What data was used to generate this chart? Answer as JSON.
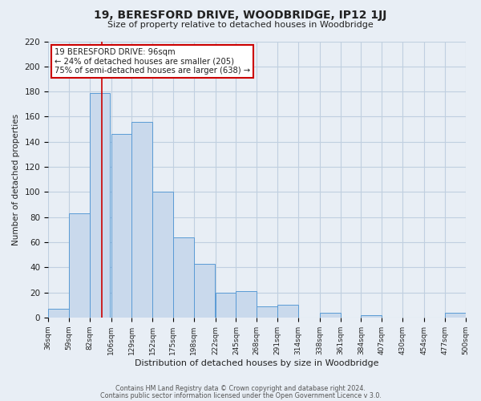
{
  "title": "19, BERESFORD DRIVE, WOODBRIDGE, IP12 1JJ",
  "subtitle": "Size of property relative to detached houses in Woodbridge",
  "xlabel": "Distribution of detached houses by size in Woodbridge",
  "ylabel": "Number of detached properties",
  "bar_left_edges": [
    36,
    59,
    82,
    106,
    129,
    152,
    175,
    198,
    222,
    245,
    268,
    291,
    314,
    338,
    361,
    384,
    407,
    430,
    454,
    477
  ],
  "bar_heights": [
    7,
    83,
    179,
    146,
    156,
    100,
    64,
    43,
    20,
    21,
    9,
    10,
    0,
    4,
    0,
    2,
    0,
    0,
    0,
    4
  ],
  "bin_width": 23,
  "bar_color": "#c9d9ec",
  "bar_edge_color": "#5a9bd5",
  "ylim": [
    0,
    220
  ],
  "yticks": [
    0,
    20,
    40,
    60,
    80,
    100,
    120,
    140,
    160,
    180,
    200,
    220
  ],
  "xtick_labels": [
    "36sqm",
    "59sqm",
    "82sqm",
    "106sqm",
    "129sqm",
    "152sqm",
    "175sqm",
    "198sqm",
    "222sqm",
    "245sqm",
    "268sqm",
    "291sqm",
    "314sqm",
    "338sqm",
    "361sqm",
    "384sqm",
    "407sqm",
    "430sqm",
    "454sqm",
    "477sqm",
    "500sqm"
  ],
  "property_size": 96,
  "red_line_x": 96,
  "annotation_title": "19 BERESFORD DRIVE: 96sqm",
  "annotation_line1": "← 24% of detached houses are smaller (205)",
  "annotation_line2": "75% of semi-detached houses are larger (638) →",
  "annotation_box_color": "#ffffff",
  "annotation_box_edge_color": "#cc0000",
  "grid_color": "#c0cfe0",
  "background_color": "#e8eef5",
  "footer1": "Contains HM Land Registry data © Crown copyright and database right 2024.",
  "footer2": "Contains public sector information licensed under the Open Government Licence v 3.0."
}
